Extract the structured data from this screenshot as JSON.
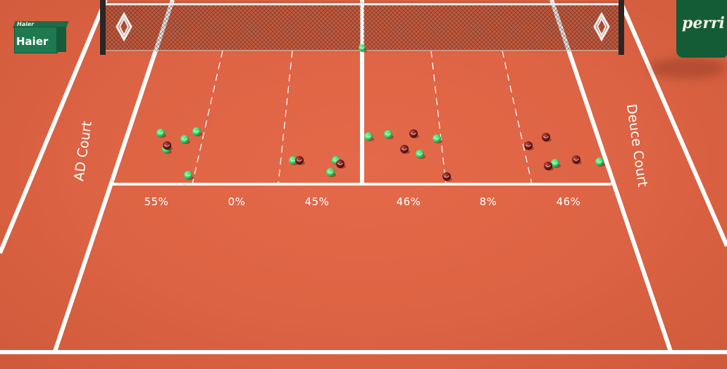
{
  "court": {
    "ad_label": "AD Court",
    "deuce_label": "Deuce Court",
    "line_color": "#ffffff",
    "surface_color": "#dc6343"
  },
  "percentages": [
    "55%",
    "0%",
    "45%",
    "46%",
    "8%",
    "46%"
  ],
  "sponsors": {
    "left_small": "Haier",
    "left_big": "Haier",
    "right_bottle": "perri"
  },
  "ball_colors": {
    "in": "#3ddc6e",
    "out": "#7a1a1a"
  },
  "balls": {
    "green": 18,
    "dark": 12
  }
}
